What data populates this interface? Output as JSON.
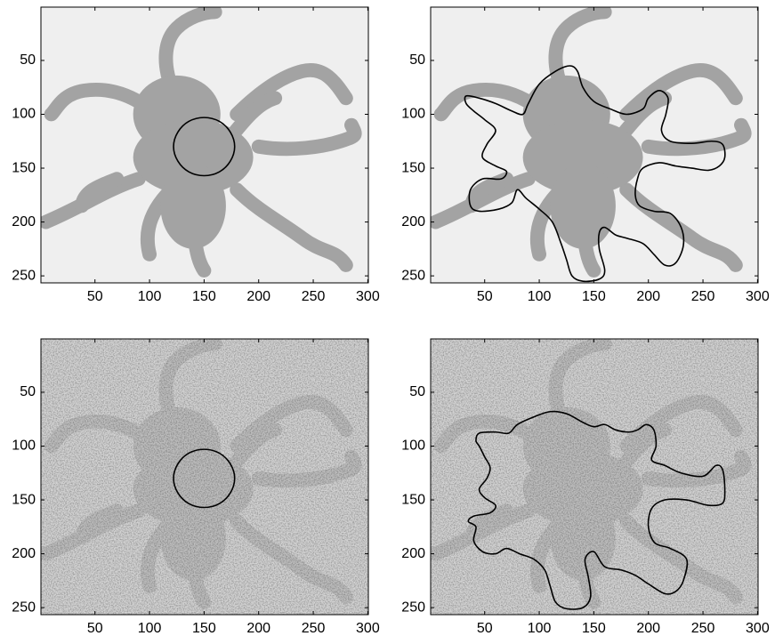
{
  "chart_data": [
    {
      "type": "image",
      "noise": false,
      "xlim": [
        0.5,
        300.5
      ],
      "ylim": [
        0.5,
        256.5
      ],
      "xticks": [
        50,
        100,
        150,
        200,
        250,
        300
      ],
      "yticks": [
        50,
        100,
        150,
        200,
        250
      ],
      "color": "#000000",
      "contour": {
        "x": [
          178,
          174,
          164,
          150,
          136,
          126,
          122,
          126,
          136,
          150,
          164,
          174
        ],
        "y": [
          130,
          143.5,
          153.4,
          157,
          153.4,
          143.5,
          130,
          116.5,
          106.6,
          103,
          106.6,
          116.5
        ]
      }
    },
    {
      "type": "image",
      "noise": false,
      "xlim": [
        0.5,
        300.5
      ],
      "ylim": [
        0.5,
        256.5
      ],
      "xticks": [
        50,
        100,
        150,
        200,
        250,
        300
      ],
      "yticks": [
        50,
        100,
        150,
        200,
        250
      ],
      "color": "#000000",
      "contour": {
        "x": [
          33,
          45,
          60,
          75,
          85,
          90,
          100,
          115,
          128,
          135,
          140,
          150,
          165,
          180,
          195,
          200,
          210,
          218,
          216,
          212,
          220,
          240,
          258,
          268,
          270,
          265,
          255,
          240,
          225,
          210,
          195,
          190,
          188,
          192,
          205,
          220,
          230,
          232,
          225,
          215,
          205,
          195,
          180,
          170,
          160,
          155,
          155,
          160,
          155,
          140,
          130,
          125,
          120,
          112,
          100,
          88,
          80,
          75,
          63,
          45,
          37,
          37,
          48,
          65,
          70,
          60,
          48,
          52,
          60,
          50,
          40,
          33
        ],
        "y": [
          83,
          85,
          90,
          97,
          100,
          90,
          72,
          60,
          55,
          60,
          75,
          88,
          95,
          100,
          95,
          85,
          78,
          85,
          100,
          115,
          125,
          127,
          125,
          128,
          140,
          148,
          152,
          150,
          148,
          145,
          150,
          160,
          175,
          185,
          190,
          192,
          205,
          222,
          238,
          240,
          230,
          220,
          215,
          212,
          205,
          210,
          225,
          245,
          253,
          255,
          250,
          235,
          220,
          200,
          188,
          178,
          170,
          182,
          188,
          190,
          185,
          170,
          160,
          160,
          153,
          148,
          140,
          128,
          115,
          105,
          97,
          90
        ]
      }
    },
    {
      "type": "image",
      "noise": true,
      "xlim": [
        0.5,
        300.5
      ],
      "ylim": [
        0.5,
        256.5
      ],
      "xticks": [
        50,
        100,
        150,
        200,
        250,
        300
      ],
      "yticks": [
        50,
        100,
        150,
        200,
        250
      ],
      "color": "#000000",
      "contour": {
        "x": [
          178,
          174,
          164,
          150,
          136,
          126,
          122,
          126,
          136,
          150,
          164,
          174
        ],
        "y": [
          130,
          143.5,
          153.4,
          157,
          153.4,
          143.5,
          130,
          116.5,
          106.6,
          103,
          106.6,
          116.5
        ]
      }
    },
    {
      "type": "image",
      "noise": true,
      "xlim": [
        0.5,
        300.5
      ],
      "ylim": [
        0.5,
        256.5
      ],
      "xticks": [
        50,
        100,
        150,
        200,
        250,
        300
      ],
      "yticks": [
        50,
        100,
        150,
        200,
        250
      ],
      "color": "#000000",
      "contour": {
        "x": [
          45,
          60,
          72,
          80,
          95,
          110,
          125,
          140,
          150,
          160,
          170,
          182,
          190,
          198,
          205,
          207,
          203,
          215,
          230,
          250,
          262,
          268,
          270,
          268,
          255,
          235,
          215,
          203,
          200,
          206,
          220,
          235,
          232,
          225,
          215,
          200,
          188,
          175,
          160,
          150,
          142,
          145,
          147,
          140,
          125,
          115,
          110,
          105,
          95,
          82,
          70,
          60,
          48,
          40,
          42,
          35,
          40,
          55,
          60,
          50,
          45,
          52,
          55,
          50,
          45,
          42
        ],
        "y": [
          88,
          87,
          88,
          80,
          73,
          68,
          70,
          78,
          82,
          80,
          85,
          87,
          85,
          80,
          85,
          100,
          113,
          118,
          125,
          128,
          118,
          122,
          140,
          153,
          155,
          150,
          150,
          158,
          175,
          190,
          195,
          205,
          225,
          235,
          237,
          228,
          220,
          215,
          212,
          198,
          205,
          222,
          240,
          250,
          251,
          245,
          230,
          215,
          205,
          200,
          195,
          200,
          198,
          188,
          175,
          170,
          165,
          162,
          155,
          148,
          140,
          130,
          120,
          110,
          100,
          95
        ]
      }
    }
  ]
}
